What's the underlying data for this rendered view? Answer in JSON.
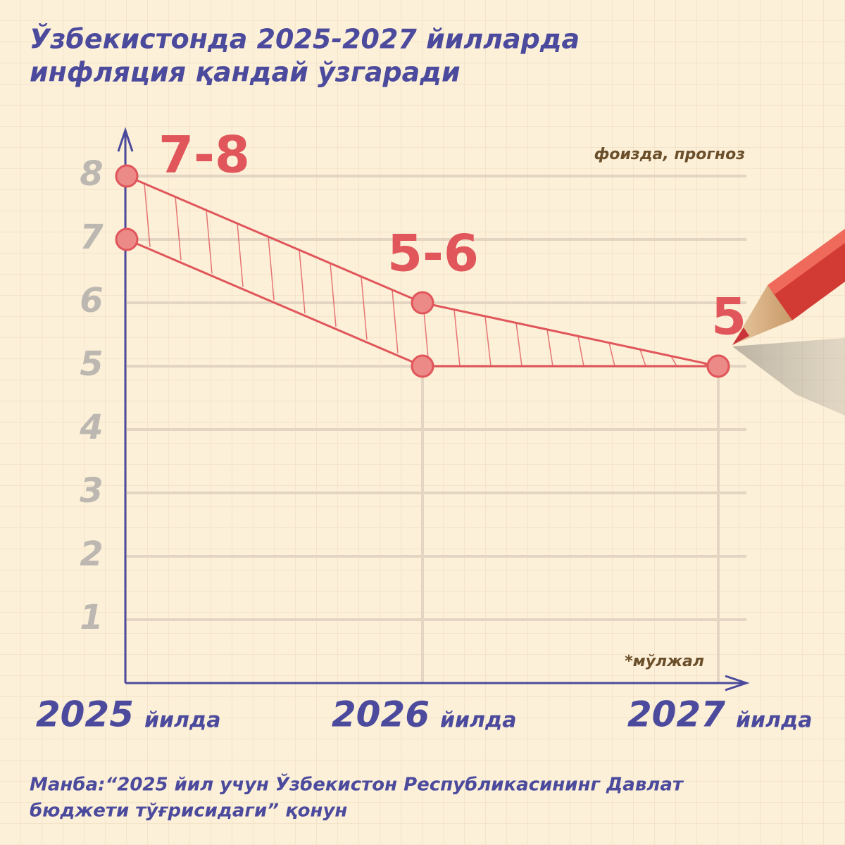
{
  "chart_data": {
    "type": "range",
    "title": [
      "Ўзбекистонда 2025-2027 йилларда",
      "инфляция қандай ўзгаради"
    ],
    "unit_note": "фоизда, прогноз",
    "footnote": "*мўлжал",
    "categories": [
      "2025",
      "2026",
      "2027"
    ],
    "category_suffix": "йилда",
    "high": [
      8,
      6,
      5
    ],
    "low": [
      7,
      5,
      5
    ],
    "value_labels": [
      "7-8",
      "5-6",
      "5"
    ],
    "color": "#e0565a",
    "ylim": [
      0,
      9
    ],
    "yticks": [
      1,
      2,
      3,
      4,
      5,
      6,
      7,
      8
    ],
    "grid": true,
    "source": [
      "Манба:“2025 йил учун Ўзбекистон Республикасининг Давлат",
      "бюджети тўғрисидаги” қонун"
    ]
  }
}
